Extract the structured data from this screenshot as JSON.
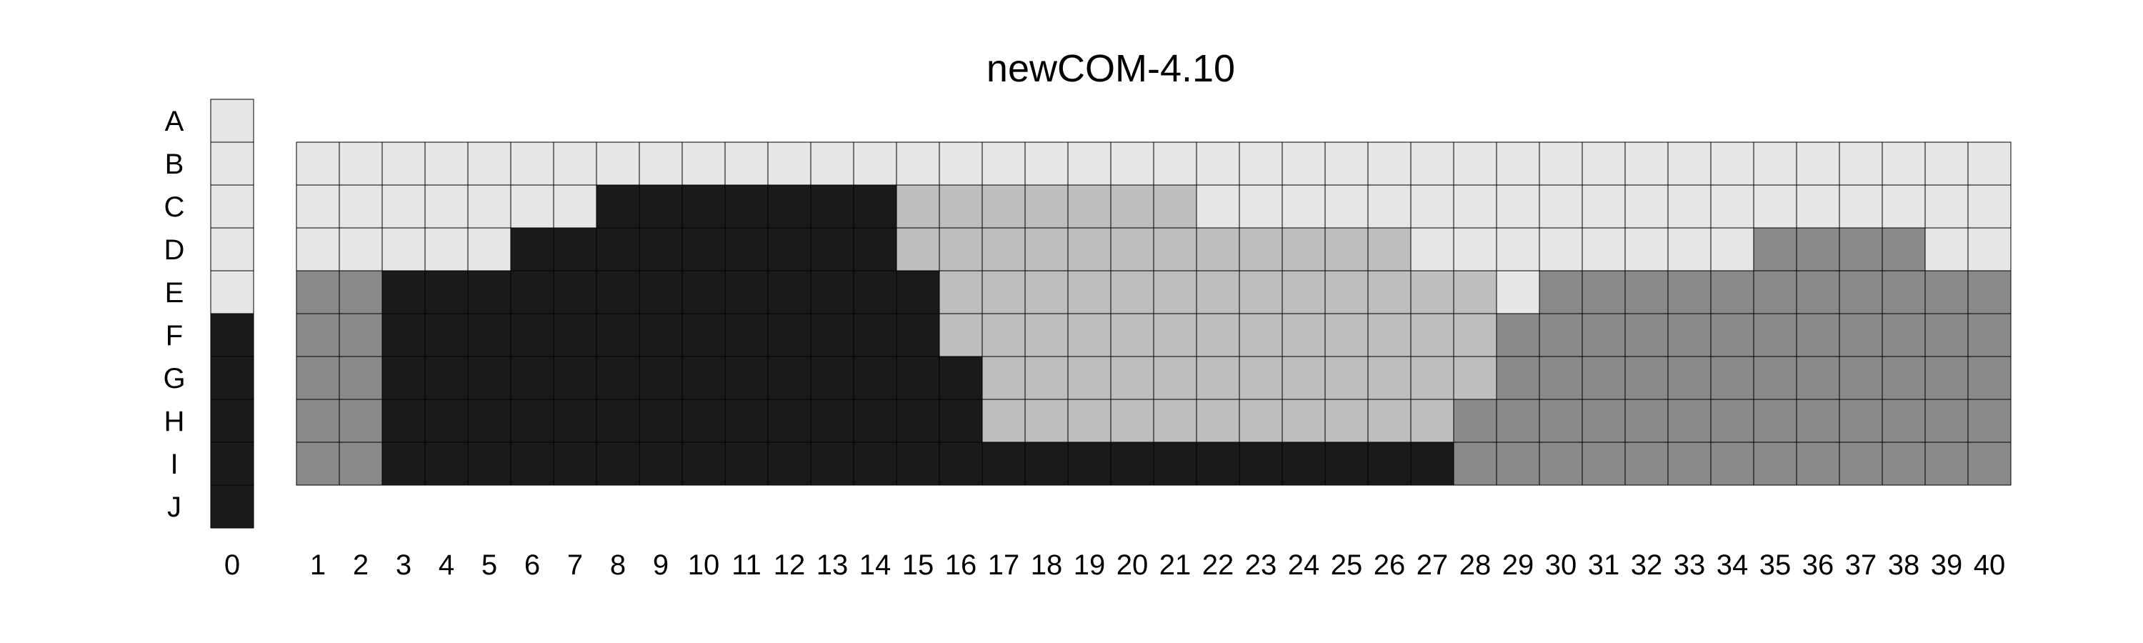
{
  "chart_data": {
    "type": "heatmap",
    "title": "newCOM-4.10",
    "rows": [
      "A",
      "B",
      "C",
      "D",
      "E",
      "F",
      "G",
      "H",
      "I",
      "J"
    ],
    "columns": [
      "0",
      "1",
      "2",
      "3",
      "4",
      "5",
      "6",
      "7",
      "8",
      "9",
      "10",
      "11",
      "12",
      "13",
      "14",
      "15",
      "16",
      "17",
      "18",
      "19",
      "20",
      "21",
      "22",
      "23",
      "24",
      "25",
      "26",
      "27",
      "28",
      "29",
      "30",
      "31",
      "32",
      "33",
      "34",
      "35",
      "36",
      "37",
      "38",
      "39",
      "40"
    ],
    "categories": {
      "L": "light",
      "S": "silver",
      "G": "gray",
      "K": "black"
    },
    "colors": {
      "L": "#e6e6e6",
      "S": "#bebebe",
      "G": "#898989",
      "K": "#1a1a1a"
    },
    "reference_column": [
      "L",
      "L",
      "L",
      "L",
      "L",
      "K",
      "K",
      "K",
      "K",
      "K"
    ],
    "grid_rows": [
      "B",
      "C",
      "D",
      "E",
      "F",
      "G",
      "H",
      "I"
    ],
    "grid": [
      "LLLLLLLLLLLLLLLLLLLLLLLLLLLLLLLLLLLLLLLL",
      "LLLLLLLKKKKKKKSSSSSSSLLLLLLLLLLLLLLLLLLL",
      "LLLLLKKKKKKKKKSSSSSSSSSSSSLLLLLLLLGGGGLL",
      "GGKKKKKKKKKKKKKSSSSSSSSSSSSSLGGGGGGGGGGG",
      "GGKKKKKKKKKKKKKSSSSSSSSSSSSSGGGGGGGGGGGG",
      "GGKKKKKKKKKKKKKKSSSSSSSSSSSSGGGGGGGGGGGG",
      "GGKKKKKKKKKKKKKKSSSSSSSSSSSGGGGGGGGGGGGG",
      "GGKKKKKKKKKKKKKKKKKKKKKKKKKGGGGGGGGGGGGG"
    ]
  }
}
